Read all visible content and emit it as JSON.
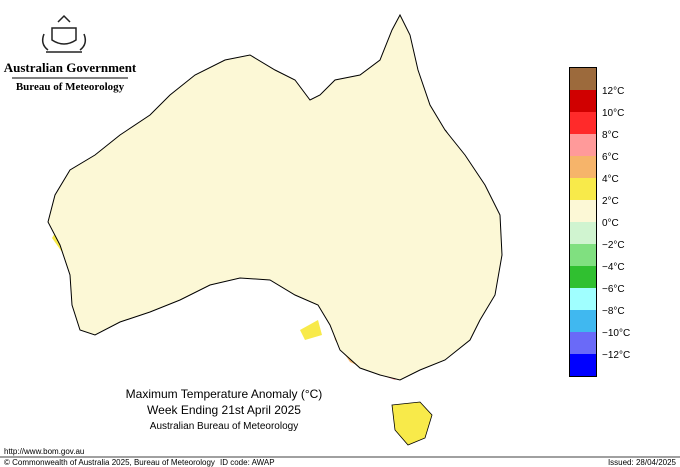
{
  "header": {
    "government": "Australian Government",
    "bureau": "Bureau of Meteorology"
  },
  "title": {
    "line1": "Maximum Temperature Anomaly (°C)",
    "line2": "Week Ending 21st April 2025",
    "line3": "Australian Bureau of Meteorology"
  },
  "legend": {
    "colors": [
      "#9c6a3c",
      "#d00000",
      "#ff2a2a",
      "#ff9a9a",
      "#f6b46a",
      "#f8ea4a",
      "#fcf8d6",
      "#d0f4d0",
      "#80e080",
      "#30c030",
      "#a0ffff",
      "#40b8f0",
      "#6a6af8",
      "#0000ff"
    ],
    "labels": [
      "12°C",
      "10°C",
      "8°C",
      "6°C",
      "4°C",
      "2°C",
      "0°C",
      "−2°C",
      "−4°C",
      "−6°C",
      "−8°C",
      "−10°C",
      "−12°C"
    ]
  },
  "footer": {
    "url": "http://www.bom.gov.au",
    "copyright": "© Commonwealth of Australia 2025, Bureau of Meteorology",
    "id": "ID code: AWAP",
    "issued": "Issued: 28/04/2025"
  }
}
